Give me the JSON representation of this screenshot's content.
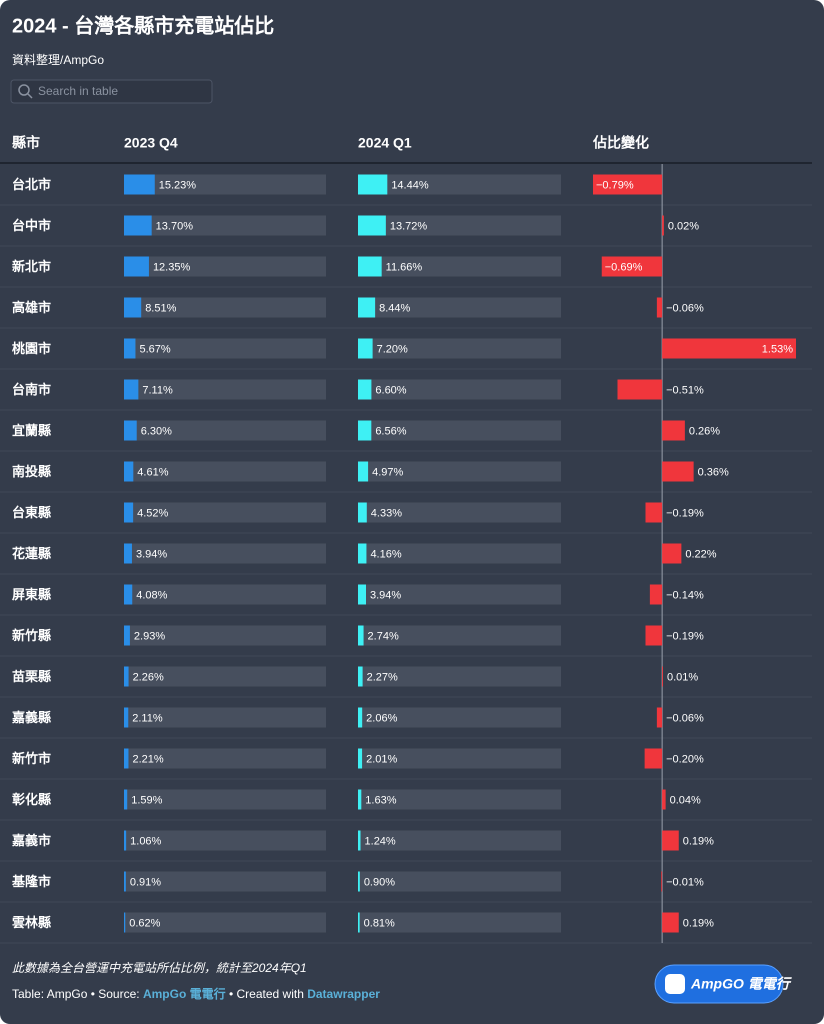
{
  "chart_data": {
    "type": "bar-table",
    "title": "2024 - 台灣各縣市充電站佔比",
    "subtitle": "資料整理/AmpGo",
    "search_placeholder": "Search in table",
    "category_header": "縣市",
    "categories": [
      "台北市",
      "台中市",
      "新北市",
      "高雄市",
      "桃園市",
      "台南市",
      "宜蘭縣",
      "南投縣",
      "台東縣",
      "花蓮縣",
      "屏東縣",
      "新竹縣",
      "苗栗縣",
      "嘉義縣",
      "新竹市",
      "彰化縣",
      "嘉義市",
      "基隆市",
      "雲林縣"
    ],
    "series": [
      {
        "name": "2023 Q4",
        "color": "#2a8ee8",
        "xlim": [
          0,
          100
        ],
        "values": [
          15.23,
          13.7,
          12.35,
          8.51,
          5.67,
          7.11,
          6.3,
          4.61,
          4.52,
          3.94,
          4.08,
          2.93,
          2.26,
          2.11,
          2.21,
          1.59,
          1.06,
          0.91,
          0.62
        ],
        "value_labels": [
          "15.23%",
          "13.70%",
          "12.35%",
          "8.51%",
          "5.67%",
          "7.11%",
          "6.30%",
          "4.61%",
          "4.52%",
          "3.94%",
          "4.08%",
          "2.93%",
          "2.26%",
          "2.11%",
          "2.21%",
          "1.59%",
          "1.06%",
          "0.91%",
          "0.62%"
        ]
      },
      {
        "name": "2024 Q1",
        "color": "#3ef0f4",
        "xlim": [
          0,
          100
        ],
        "values": [
          14.44,
          13.72,
          11.66,
          8.44,
          7.2,
          6.6,
          6.56,
          4.97,
          4.33,
          4.16,
          3.94,
          2.74,
          2.27,
          2.06,
          2.01,
          1.63,
          1.24,
          0.9,
          0.81
        ],
        "value_labels": [
          "14.44%",
          "13.72%",
          "11.66%",
          "8.44%",
          "7.20%",
          "6.60%",
          "6.56%",
          "4.97%",
          "4.33%",
          "4.16%",
          "3.94%",
          "2.74%",
          "2.27%",
          "2.06%",
          "2.01%",
          "1.63%",
          "1.24%",
          "0.90%",
          "0.81%"
        ]
      },
      {
        "name": "佔比變化",
        "color": "#f0363c",
        "xlim": [
          -0.79,
          1.53
        ],
        "values": [
          -0.79,
          0.02,
          -0.69,
          -0.06,
          1.53,
          -0.51,
          0.26,
          0.36,
          -0.19,
          0.22,
          -0.14,
          -0.19,
          0.01,
          -0.06,
          -0.2,
          0.04,
          0.19,
          -0.01,
          0.19
        ],
        "value_labels": [
          "−0.79%",
          "0.02%",
          "−0.69%",
          "−0.06%",
          "1.53%",
          "−0.51%",
          "0.26%",
          "0.36%",
          "−0.19%",
          "0.22%",
          "−0.14%",
          "−0.19%",
          "0.01%",
          "−0.06%",
          "−0.20%",
          "0.04%",
          "0.19%",
          "−0.01%",
          "0.19%"
        ]
      }
    ],
    "notes": "此數據為全台營運中充電站所佔比例，統計至2024年Q1",
    "footer": {
      "table": "Table: AmpGo",
      "source_label": "Source:",
      "source": "AmpGo 電電行",
      "created_label": "Created with",
      "tool": "Datawrapper"
    },
    "logo": "AmpGO 電電行"
  }
}
